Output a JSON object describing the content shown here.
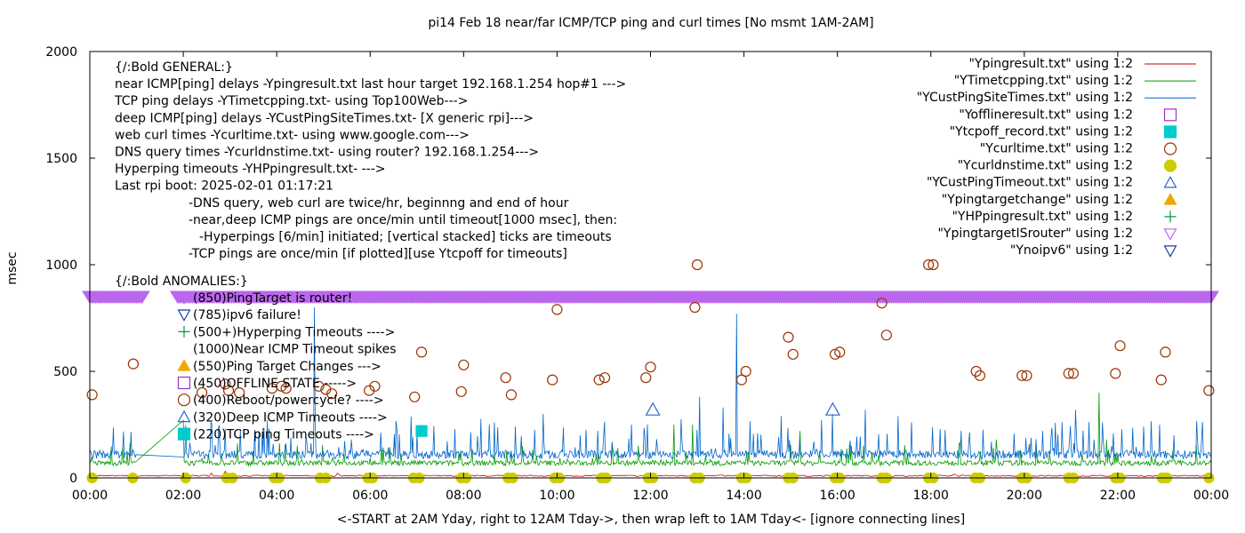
{
  "chart_data": {
    "type": "line",
    "title": "pi14 Feb 18  near/far ICMP/TCP ping and curl times [No msmt 1AM-2AM]",
    "xlabel": "<-START at 2AM Yday, right to 12AM Tday->, then wrap left to 1AM Tday<- [ignore connecting lines]",
    "ylabel": "msec",
    "xlim": [
      0,
      24
    ],
    "ylim": [
      0,
      2000
    ],
    "x_ticks": [
      "00:00",
      "02:00",
      "04:00",
      "06:00",
      "08:00",
      "10:00",
      "12:00",
      "14:00",
      "16:00",
      "18:00",
      "20:00",
      "22:00",
      "00:00"
    ],
    "y_ticks": [
      "0",
      "500",
      "1000",
      "1500",
      "2000"
    ],
    "grid": false,
    "legend_position": "top-right",
    "legend": [
      {
        "label": "\"Ypingresult.txt\" using 1:2",
        "marker": "line",
        "color": "#cc0000"
      },
      {
        "label": "\"YTimetcpping.txt\" using 1:2",
        "marker": "line",
        "color": "#009900"
      },
      {
        "label": "\"YCustPingSiteTimes.txt\" using 1:2",
        "marker": "line",
        "color": "#0066cc"
      },
      {
        "label": "\"Yofflineresult.txt\" using 1:2",
        "marker": "open-square",
        "color": "#9933cc"
      },
      {
        "label": "\"Ytcpoff_record.txt\" using 1:2",
        "marker": "filled-square",
        "color": "#00cccc"
      },
      {
        "label": "\"Ycurltime.txt\" using 1:2",
        "marker": "open-circle",
        "color": "#993300"
      },
      {
        "label": "\"Ycurldnstime.txt\" using 1:2",
        "marker": "filled-circle",
        "color": "#cccc00"
      },
      {
        "label": "\"YCustPingTimeout.txt\" using 1:2",
        "marker": "open-triangle-up",
        "color": "#3366cc"
      },
      {
        "label": "\"Ypingtargetchange\" using 1:2",
        "marker": "filled-triangle-up",
        "color": "#f0a800"
      },
      {
        "label": "\"YHPpingresult.txt\" using 1:2",
        "marker": "plus",
        "color": "#009944"
      },
      {
        "label": "\"YpingtargetISrouter\" using 1:2",
        "marker": "open-triangle-down",
        "color": "#bb66ee"
      },
      {
        "label": "\"Ynoipv6\" using 1:2",
        "marker": "open-triangle-down",
        "color": "#1f3f9f"
      }
    ],
    "general_notes": [
      "{/:Bold GENERAL:}",
      "near ICMP[ping] delays -Ypingresult.txt last hour target 192.168.1.254 hop#1 --->",
      "TCP ping delays -YTimetcpping.txt- using Top100Web--->",
      "deep ICMP[ping] delays -YCustPingSiteTimes.txt- [X generic rpi]--->",
      "web curl times -Ycurltime.txt- using www.google.com--->",
      "DNS query times -Ycurldnstime.txt- using router? 192.168.1.254--->",
      "Hyperping timeouts -YHPpingresult.txt- --->",
      "Last rpi boot: 2025-02-01 01:17:21",
      "-DNS query, web curl are twice/hr, beginnng and end of hour",
      "-near,deep ICMP pings are once/min until timeout[1000 msec], then:",
      "-Hyperpings [6/min] initiated; [vertical stacked] ticks are timeouts",
      "-TCP pings are once/min [if plotted][use Ytcpoff for timeouts]"
    ],
    "anomalies_title": "{/:Bold ANOMALIES:}",
    "anomalies": [
      {
        "text": "(850)PingTarget is router!",
        "marker": "open-triangle-down",
        "color": "#bb66ee"
      },
      {
        "text": "(785)ipv6 failure!",
        "marker": "open-triangle-down",
        "color": "#1f3f9f"
      },
      {
        "text": "(500+)Hyperping Timeouts ---->",
        "marker": "plus",
        "color": "#009944"
      },
      {
        "text": "(1000)Near ICMP Timeout spikes",
        "marker": "none",
        "color": "#000000"
      },
      {
        "text": "(550)Ping Target Changes --->",
        "marker": "filled-triangle-up",
        "color": "#f0a800"
      },
      {
        "text": "(450)OFFLINE STATE ----->",
        "marker": "open-square",
        "color": "#9933cc"
      },
      {
        "text": "(400)Reboot/powercycle? ---->",
        "marker": "open-circle",
        "color": "#993300"
      },
      {
        "text": "(320)Deep ICMP Timeouts ---->",
        "marker": "open-triangle-up",
        "color": "#3366cc"
      },
      {
        "text": "(220)TCP ping Timeouts ---->",
        "marker": "filled-square",
        "color": "#00cccc"
      }
    ],
    "series": [
      {
        "name": "Ypingresult.txt",
        "baseline": 10,
        "color": "#cc0000"
      },
      {
        "name": "YTimetcpping.txt",
        "baseline": 70,
        "spikes": [
          [
            2.0,
            270
          ],
          [
            7.9,
            120
          ],
          [
            11.3,
            140
          ],
          [
            12.5,
            250
          ],
          [
            12.9,
            250
          ],
          [
            15.2,
            220
          ],
          [
            16.3,
            150
          ],
          [
            19.4,
            180
          ],
          [
            21.6,
            400
          ],
          [
            21.75,
            180
          ]
        ],
        "color": "#009900"
      },
      {
        "name": "YCustPingSiteTimes.txt",
        "baseline": 110,
        "spikes": [
          [
            1.4,
            240
          ],
          [
            2.9,
            230
          ],
          [
            3.8,
            270
          ],
          [
            4.3,
            190
          ],
          [
            4.8,
            800
          ],
          [
            5.6,
            180
          ],
          [
            9.1,
            240
          ],
          [
            9.7,
            300
          ],
          [
            10.5,
            200
          ],
          [
            11.6,
            250
          ],
          [
            13.05,
            380
          ],
          [
            13.55,
            330
          ],
          [
            13.85,
            770
          ],
          [
            14.3,
            210
          ],
          [
            14.8,
            290
          ],
          [
            15.9,
            300
          ],
          [
            16.6,
            320
          ],
          [
            17.3,
            290
          ],
          [
            18.2,
            230
          ],
          [
            19.3,
            170
          ],
          [
            20.4,
            220
          ],
          [
            21.1,
            320
          ],
          [
            21.5,
            180
          ],
          [
            21.9,
            210
          ],
          [
            22.9,
            250
          ],
          [
            23.2,
            200
          ],
          [
            23.7,
            180
          ]
        ],
        "color": "#0066cc"
      },
      {
        "name": "YpingtargetISrouter",
        "value": 850,
        "gaps": [
          [
            1.15,
            1.85
          ]
        ],
        "color": "#bb66ee"
      },
      {
        "name": "Ycurltime.txt",
        "points": [
          [
            0.05,
            390
          ],
          [
            0.93,
            535
          ],
          [
            2.4,
            400
          ],
          [
            2.9,
            440
          ],
          [
            2.97,
            410
          ],
          [
            3.2,
            400
          ],
          [
            3.9,
            420
          ],
          [
            4.1,
            430
          ],
          [
            4.2,
            420
          ],
          [
            4.9,
            430
          ],
          [
            5.05,
            415
          ],
          [
            5.18,
            395
          ],
          [
            5.98,
            410
          ],
          [
            6.1,
            430
          ],
          [
            6.95,
            380
          ],
          [
            7.1,
            590
          ],
          [
            7.95,
            405
          ],
          [
            8.0,
            530
          ],
          [
            8.9,
            470
          ],
          [
            9.02,
            390
          ],
          [
            9.9,
            460
          ],
          [
            10.0,
            790
          ],
          [
            10.9,
            460
          ],
          [
            11.02,
            470
          ],
          [
            11.9,
            470
          ],
          [
            12.0,
            520
          ],
          [
            12.95,
            800
          ],
          [
            13.0,
            1000
          ],
          [
            13.95,
            460
          ],
          [
            14.04,
            500
          ],
          [
            14.95,
            660
          ],
          [
            15.05,
            580
          ],
          [
            15.95,
            580
          ],
          [
            16.05,
            590
          ],
          [
            16.95,
            820
          ],
          [
            17.05,
            670
          ],
          [
            17.95,
            1000
          ],
          [
            18.05,
            1000
          ],
          [
            18.97,
            500
          ],
          [
            19.05,
            480
          ],
          [
            19.95,
            480
          ],
          [
            20.05,
            480
          ],
          [
            20.95,
            490
          ],
          [
            21.05,
            490
          ],
          [
            21.95,
            490
          ],
          [
            22.05,
            620
          ],
          [
            22.93,
            460
          ],
          [
            23.02,
            590
          ],
          [
            23.95,
            410
          ]
        ],
        "color": "#993300"
      },
      {
        "name": "Ycurldnstime.txt",
        "value": 0,
        "points": [
          0.05,
          0.92,
          2.05,
          2.93,
          3.05,
          3.95,
          4.05,
          4.93,
          5.05,
          5.95,
          6.05,
          6.93,
          7.05,
          7.95,
          8.05,
          8.95,
          9.05,
          9.95,
          10.05,
          10.95,
          11.05,
          11.95,
          12.05,
          12.95,
          13.05,
          13.95,
          14.05,
          14.95,
          15.05,
          15.95,
          16.05,
          16.95,
          17.05,
          17.95,
          18.05,
          18.95,
          19.05,
          19.95,
          20.05,
          20.95,
          21.05,
          21.95,
          22.05,
          22.95,
          23.05,
          23.95
        ],
        "color": "#cccc00"
      },
      {
        "name": "YCustPingTimeout.txt",
        "points": [
          [
            12.05,
            320
          ],
          [
            15.9,
            320
          ]
        ],
        "color": "#3366cc"
      },
      {
        "name": "Ytcpoff_record.txt",
        "points": [
          [
            7.1,
            220
          ]
        ],
        "color": "#00cccc"
      }
    ]
  }
}
